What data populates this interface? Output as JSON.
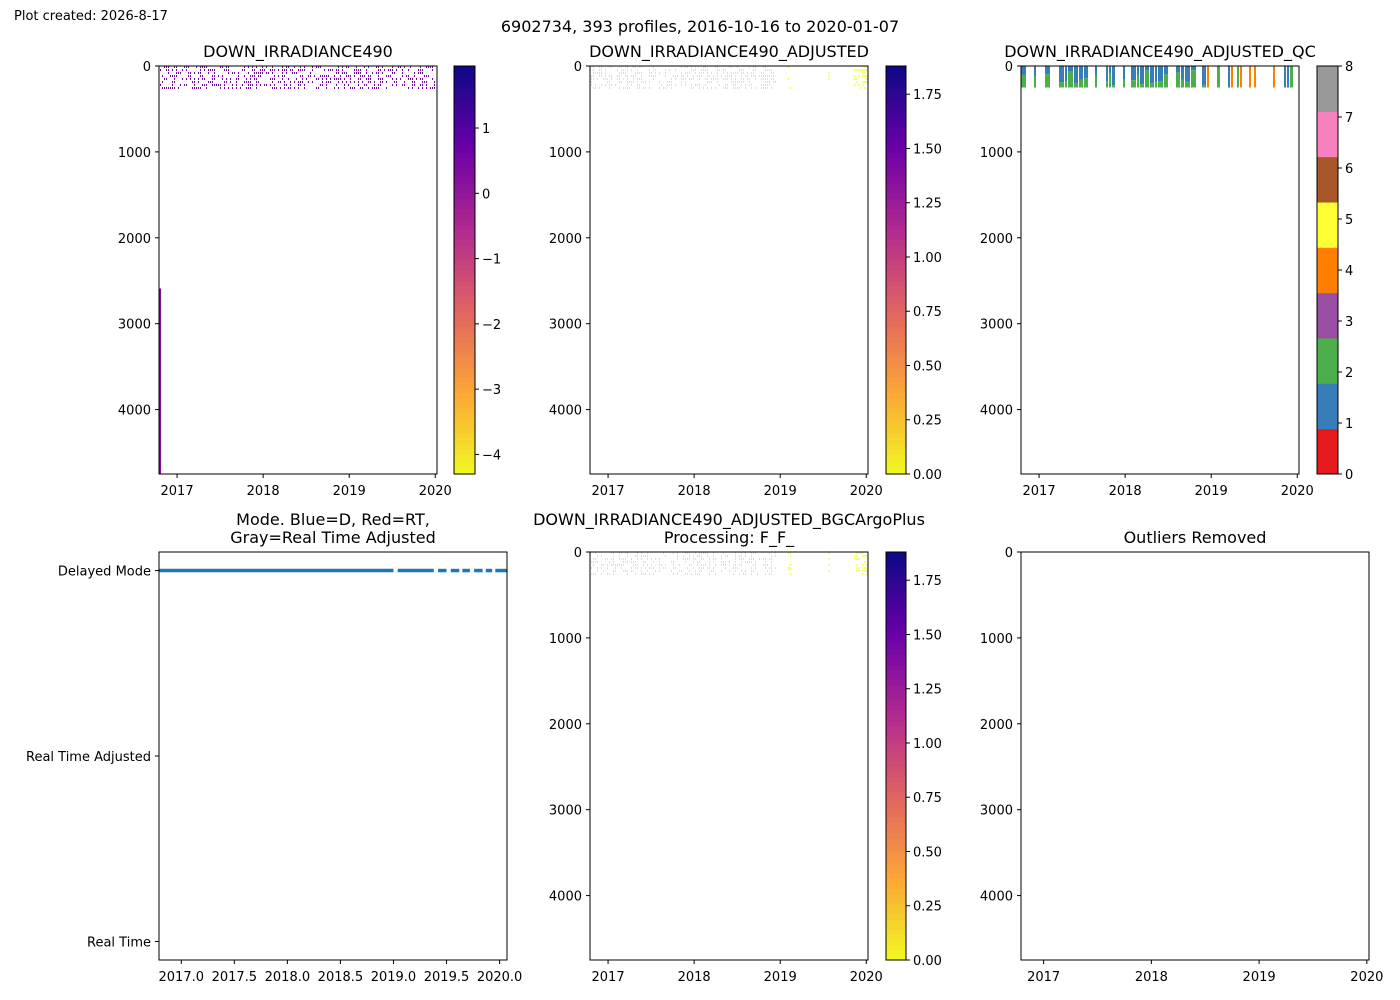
{
  "figure": {
    "created_label": "Plot created: 2026-8-17",
    "suptitle": "6902734, 393 profiles, 2016-10-16 to 2020-01-07"
  },
  "colormaps": {
    "plasma_r": [
      "#f0f921",
      "#fca636",
      "#e16462",
      "#b12a90",
      "#6a00a8",
      "#0d0887"
    ],
    "qc_flags": [
      "#e41a1c",
      "#377eb8",
      "#4daf4a",
      "#984ea3",
      "#ff7f00",
      "#ffff33",
      "#a65628",
      "#f781bf",
      "#999999"
    ]
  },
  "chart_data": [
    {
      "id": "raw",
      "type": "heatmap",
      "title": "DOWN_IRRADIANCE490",
      "x_range": [
        2016.79,
        2020.02
      ],
      "y_range": [
        4750,
        0
      ],
      "x_ticks": [
        "2017",
        "2018",
        "2019",
        "2020"
      ],
      "x_tick_values": [
        2017,
        2018,
        2019,
        2020
      ],
      "y_ticks": [
        "0",
        "1000",
        "2000",
        "3000",
        "4000"
      ],
      "y_tick_values": [
        0,
        1000,
        2000,
        3000,
        4000
      ],
      "data_depth_range": [
        0,
        250
      ],
      "data_time_range": [
        2016.79,
        2020.02
      ],
      "data_dominant_value": 0.5,
      "deep_profile": {
        "time": 2016.79,
        "depth_range": [
          2590,
          4750
        ],
        "value": 0.3
      },
      "colorbar": {
        "cmap": "plasma_r",
        "vmin": -4.3,
        "vmax": 1.95,
        "ticks": [
          "1",
          "0",
          "−1",
          "−2",
          "−3",
          "−4"
        ],
        "tick_values": [
          1,
          0,
          -1,
          -2,
          -3,
          -4
        ]
      }
    },
    {
      "id": "adjusted",
      "type": "heatmap",
      "title": "DOWN_IRRADIANCE490_ADJUSTED",
      "x_range": [
        2016.79,
        2020.02
      ],
      "y_range": [
        4750,
        0
      ],
      "x_ticks": [
        "2017",
        "2018",
        "2019",
        "2020"
      ],
      "x_tick_values": [
        2017,
        2018,
        2019,
        2020
      ],
      "y_ticks": [
        "0",
        "1000",
        "2000",
        "3000",
        "4000"
      ],
      "y_tick_values": [
        0,
        1000,
        2000,
        3000,
        4000
      ],
      "data_depth_range": [
        0,
        250
      ],
      "data_dominant_value": 0.0,
      "data_time_segments": [
        [
          2016.79,
          2018.95
        ],
        [
          2019.08,
          2019.12
        ],
        [
          2019.55,
          2019.57
        ],
        [
          2019.85,
          2020.02
        ]
      ],
      "colorbar": {
        "cmap": "plasma_r",
        "vmin": 0,
        "vmax": 1.88,
        "ticks": [
          "0.00",
          "0.25",
          "0.50",
          "0.75",
          "1.00",
          "1.25",
          "1.50",
          "1.75"
        ],
        "tick_values": [
          0,
          0.25,
          0.5,
          0.75,
          1.0,
          1.25,
          1.5,
          1.75
        ]
      }
    },
    {
      "id": "qc",
      "type": "heatmap",
      "title": "DOWN_IRRADIANCE490_ADJUSTED_QC",
      "x_range": [
        2016.79,
        2020.02
      ],
      "y_range": [
        4750,
        0
      ],
      "x_ticks": [
        "2017",
        "2018",
        "2019",
        "2020"
      ],
      "x_tick_values": [
        2017,
        2018,
        2019,
        2020
      ],
      "y_ticks": [
        "0",
        "1000",
        "2000",
        "3000",
        "4000"
      ],
      "y_tick_values": [
        0,
        1000,
        2000,
        3000,
        4000
      ],
      "data_depth_range": [
        0,
        250
      ],
      "qc_flag_values": [
        1,
        2,
        4
      ],
      "orange_period": [
        2018.92,
        2020.02
      ],
      "colorbar": {
        "cmap": "qc_flags",
        "vmin": 0,
        "vmax": 8,
        "ticks": [
          "0",
          "1",
          "2",
          "3",
          "4",
          "5",
          "6",
          "7",
          "8"
        ],
        "tick_values": [
          0,
          1,
          2,
          3,
          4,
          5,
          6,
          7,
          8
        ]
      }
    },
    {
      "id": "mode",
      "type": "scatter",
      "title_lines": [
        "Mode. Blue=D, Red=RT,",
        "Gray=Real Time Adjusted"
      ],
      "x_range": [
        2016.79,
        2020.07
      ],
      "y_range": [
        2.1,
        -0.1
      ],
      "x_ticks": [
        "2017.0",
        "2017.5",
        "2018.0",
        "2018.5",
        "2019.0",
        "2019.5",
        "2020.0"
      ],
      "x_tick_values": [
        2017.0,
        2017.5,
        2018.0,
        2018.5,
        2019.0,
        2019.5,
        2020.0
      ],
      "y_ticks": [
        "Delayed Mode",
        "Real Time Adjusted",
        "Real Time"
      ],
      "y_tick_values": [
        0,
        1,
        2
      ],
      "series": [
        {
          "color": "#1f77b4",
          "mode_value": 0,
          "time_segments": [
            [
              2016.79,
              2019.0
            ],
            [
              2019.04,
              2019.38
            ],
            [
              2019.42,
              2019.5
            ],
            [
              2019.54,
              2019.62
            ],
            [
              2019.65,
              2019.72
            ],
            [
              2019.76,
              2019.84
            ],
            [
              2019.87,
              2019.93
            ],
            [
              2019.96,
              2020.07
            ]
          ]
        }
      ]
    },
    {
      "id": "bgcargoplus",
      "type": "heatmap",
      "title_lines": [
        "DOWN_IRRADIANCE490_ADJUSTED_BGCArgoPlus",
        "Processing: F_F_"
      ],
      "x_range": [
        2016.79,
        2020.02
      ],
      "y_range": [
        4750,
        0
      ],
      "x_ticks": [
        "2017",
        "2018",
        "2019",
        "2020"
      ],
      "x_tick_values": [
        2017,
        2018,
        2019,
        2020
      ],
      "y_ticks": [
        "0",
        "1000",
        "2000",
        "3000",
        "4000"
      ],
      "y_tick_values": [
        0,
        1000,
        2000,
        3000,
        4000
      ],
      "data_depth_range": [
        0,
        250
      ],
      "data_dominant_value": 0.0,
      "data_time_segments": [
        [
          2016.79,
          2018.95
        ],
        [
          2019.08,
          2019.12
        ],
        [
          2019.55,
          2019.57
        ],
        [
          2019.85,
          2020.02
        ]
      ],
      "colorbar": {
        "cmap": "plasma_r",
        "vmin": 0,
        "vmax": 1.88,
        "ticks": [
          "0.00",
          "0.25",
          "0.50",
          "0.75",
          "1.00",
          "1.25",
          "1.50",
          "1.75"
        ],
        "tick_values": [
          0,
          0.25,
          0.5,
          0.75,
          1.0,
          1.25,
          1.5,
          1.75
        ]
      }
    },
    {
      "id": "outliers",
      "type": "scatter",
      "title": "Outliers Removed",
      "x_range": [
        2016.79,
        2020.02
      ],
      "y_range": [
        4750,
        0
      ],
      "x_ticks": [
        "2017",
        "2018",
        "2019",
        "2020"
      ],
      "x_tick_values": [
        2017,
        2018,
        2019,
        2020
      ],
      "y_ticks": [
        "0",
        "1000",
        "2000",
        "3000",
        "4000"
      ],
      "y_tick_values": [
        0,
        1000,
        2000,
        3000,
        4000
      ],
      "series": []
    }
  ]
}
